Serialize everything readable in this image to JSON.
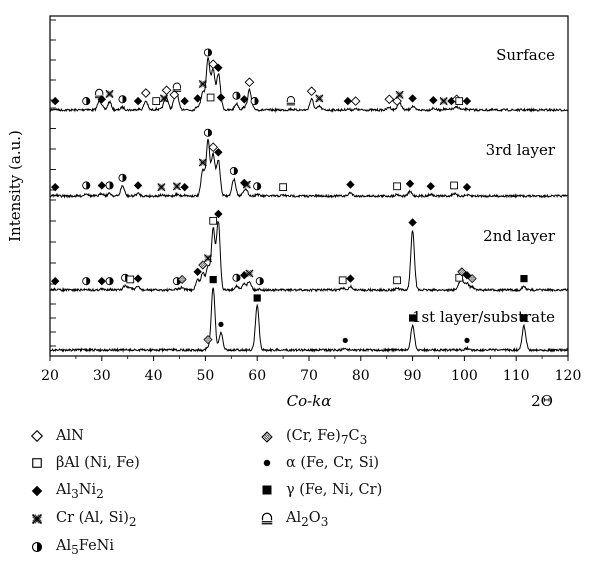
{
  "chart_data": {
    "type": "line",
    "title": "",
    "xlabel": "Co-kα",
    "xlabel_right": "2Θ",
    "ylabel": "Intensity (a.u.)",
    "xlim": [
      20,
      120
    ],
    "xticks": [
      20,
      30,
      40,
      50,
      60,
      70,
      80,
      90,
      100,
      110,
      120
    ],
    "grid": false,
    "legend_position": "bottom",
    "legend": [
      {
        "marker": "diamond-open",
        "label": "AlN"
      },
      {
        "marker": "square-open",
        "label": "βAl (Ni, Fe)"
      },
      {
        "marker": "diamond-filled",
        "label": "Al3Ni2"
      },
      {
        "marker": "cross",
        "label": "Cr (Al, Si)2"
      },
      {
        "marker": "circle-half",
        "label": "Al5FeNi"
      },
      {
        "marker": "diamond-hatched",
        "label": "(Cr, Fe)7C3"
      },
      {
        "marker": "dot",
        "label": "α (Fe, Cr, Si)"
      },
      {
        "marker": "square-filled",
        "label": "γ (Fe, Ni, Cr)"
      },
      {
        "marker": "arch",
        "label": "Al2O3"
      }
    ],
    "series": [
      {
        "name": "Surface",
        "peaks": [
          {
            "x": 21,
            "h": 0.01,
            "m": "diamond-filled"
          },
          {
            "x": 27,
            "h": 0.01,
            "m": "circle-half"
          },
          {
            "x": 29.5,
            "h": 0.09,
            "m": "arch"
          },
          {
            "x": 30,
            "h": 0.03,
            "m": "diamond-filled"
          },
          {
            "x": 31.5,
            "h": 0.09,
            "m": "cross"
          },
          {
            "x": 34,
            "h": 0.03,
            "m": "circle-half"
          },
          {
            "x": 37,
            "h": 0.01,
            "m": "diamond-filled"
          },
          {
            "x": 38.5,
            "h": 0.1,
            "m": "diamond-open"
          },
          {
            "x": 40.5,
            "h": 0.01,
            "m": "square-open"
          },
          {
            "x": 42,
            "h": 0.04,
            "m": "cross"
          },
          {
            "x": 42.5,
            "h": 0.13,
            "m": "diamond-open"
          },
          {
            "x": 44,
            "h": 0.08,
            "m": "diamond-open"
          },
          {
            "x": 44.5,
            "h": 0.16,
            "m": "arch"
          },
          {
            "x": 46,
            "h": 0.01,
            "m": "diamond-filled"
          },
          {
            "x": 48.5,
            "h": 0.04,
            "m": "diamond-filled"
          },
          {
            "x": 49.5,
            "h": 0.2,
            "m": "cross"
          },
          {
            "x": 50.5,
            "h": 0.55,
            "m": "circle-half"
          },
          {
            "x": 51.5,
            "h": 0.42,
            "m": "diamond-open"
          },
          {
            "x": 52.5,
            "h": 0.38,
            "m": "diamond-filled"
          },
          {
            "x": 51,
            "h": 0.05,
            "m": "square-open"
          },
          {
            "x": 53,
            "h": 0.05,
            "m": "diamond-filled"
          },
          {
            "x": 56,
            "h": 0.07,
            "m": "circle-half"
          },
          {
            "x": 57.5,
            "h": 0.03,
            "m": "diamond-filled"
          },
          {
            "x": 58.5,
            "h": 0.22,
            "m": "diamond-open"
          },
          {
            "x": 59.5,
            "h": 0.01,
            "m": "circle-half"
          },
          {
            "x": 66.5,
            "h": 0.01,
            "m": "arch"
          },
          {
            "x": 70.5,
            "h": 0.12,
            "m": "diamond-open"
          },
          {
            "x": 72,
            "h": 0.04,
            "m": "cross"
          },
          {
            "x": 77.5,
            "h": 0.01,
            "m": "diamond-filled"
          },
          {
            "x": 79,
            "h": 0.01,
            "m": "diamond-open"
          },
          {
            "x": 85.5,
            "h": 0.03,
            "m": "diamond-open"
          },
          {
            "x": 87,
            "h": 0.01,
            "m": "diamond-open"
          },
          {
            "x": 87.5,
            "h": 0.08,
            "m": "cross"
          },
          {
            "x": 90,
            "h": 0.04,
            "m": "diamond-filled"
          },
          {
            "x": 94,
            "h": 0.02,
            "m": "diamond-filled"
          },
          {
            "x": 96,
            "h": 0.01,
            "m": "cross"
          },
          {
            "x": 97.5,
            "h": 0.01,
            "m": "diamond-filled"
          },
          {
            "x": 98.5,
            "h": 0.03,
            "m": "diamond-open"
          },
          {
            "x": 99,
            "h": 0.01,
            "m": "square-open"
          },
          {
            "x": 100.5,
            "h": 0.01,
            "m": "diamond-filled"
          }
        ]
      },
      {
        "name": "3rd layer",
        "peaks": [
          {
            "x": 21,
            "h": 0.01,
            "m": "diamond-filled"
          },
          {
            "x": 27,
            "h": 0.03,
            "m": "circle-half"
          },
          {
            "x": 30,
            "h": 0.03,
            "m": "diamond-filled"
          },
          {
            "x": 31.5,
            "h": 0.03,
            "m": "circle-half"
          },
          {
            "x": 34,
            "h": 0.12,
            "m": "circle-half"
          },
          {
            "x": 37,
            "h": 0.03,
            "m": "diamond-filled"
          },
          {
            "x": 41.5,
            "h": 0.01,
            "m": "cross"
          },
          {
            "x": 44.5,
            "h": 0.02,
            "m": "cross"
          },
          {
            "x": 46,
            "h": 0.01,
            "m": "diamond-filled"
          },
          {
            "x": 49.5,
            "h": 0.3,
            "m": "cross"
          },
          {
            "x": 50.5,
            "h": 0.65,
            "m": "circle-half"
          },
          {
            "x": 51.5,
            "h": 0.48,
            "m": "diamond-open"
          },
          {
            "x": 52.5,
            "h": 0.42,
            "m": "diamond-filled"
          },
          {
            "x": 55.5,
            "h": 0.2,
            "m": "circle-half"
          },
          {
            "x": 57.5,
            "h": 0.06,
            "m": "diamond-filled"
          },
          {
            "x": 58,
            "h": 0.04,
            "m": "cross"
          },
          {
            "x": 60,
            "h": 0.02,
            "m": "circle-half"
          },
          {
            "x": 65,
            "h": 0.01,
            "m": "square-open"
          },
          {
            "x": 78,
            "h": 0.04,
            "m": "diamond-filled"
          },
          {
            "x": 87,
            "h": 0.02,
            "m": "square-open"
          },
          {
            "x": 89.5,
            "h": 0.05,
            "m": "diamond-filled"
          },
          {
            "x": 93.5,
            "h": 0.02,
            "m": "diamond-filled"
          },
          {
            "x": 98,
            "h": 0.03,
            "m": "square-open"
          },
          {
            "x": 100.5,
            "h": 0.01,
            "m": "diamond-filled"
          }
        ]
      },
      {
        "name": "2nd layer",
        "peaks": [
          {
            "x": 21,
            "h": 0.01,
            "m": "diamond-filled"
          },
          {
            "x": 27,
            "h": 0.01,
            "m": "circle-half"
          },
          {
            "x": 30,
            "h": 0.01,
            "m": "diamond-filled"
          },
          {
            "x": 31.5,
            "h": 0.01,
            "m": "circle-half"
          },
          {
            "x": 34.5,
            "h": 0.05,
            "m": "circle-half"
          },
          {
            "x": 35.5,
            "h": 0.03,
            "m": "square-open"
          },
          {
            "x": 37,
            "h": 0.04,
            "m": "diamond-filled"
          },
          {
            "x": 44.5,
            "h": 0.01,
            "m": "circle-half"
          },
          {
            "x": 45.5,
            "h": 0.03,
            "m": "diamond-hatched"
          },
          {
            "x": 48.5,
            "h": 0.12,
            "m": "diamond-filled"
          },
          {
            "x": 49.5,
            "h": 0.2,
            "m": "diamond-hatched"
          },
          {
            "x": 50.5,
            "h": 0.28,
            "m": "cross"
          },
          {
            "x": 51.5,
            "h": 0.72,
            "m": "square-open"
          },
          {
            "x": 52.5,
            "h": 0.8,
            "m": "diamond-filled"
          },
          {
            "x": 56,
            "h": 0.05,
            "m": "circle-half"
          },
          {
            "x": 57.5,
            "h": 0.08,
            "m": "diamond-filled"
          },
          {
            "x": 58.5,
            "h": 0.1,
            "m": "cross"
          },
          {
            "x": 60.5,
            "h": 0.01,
            "m": "circle-half"
          },
          {
            "x": 76.5,
            "h": 0.02,
            "m": "square-open"
          },
          {
            "x": 78,
            "h": 0.04,
            "m": "diamond-filled"
          },
          {
            "x": 87,
            "h": 0.02,
            "m": "square-open"
          },
          {
            "x": 90,
            "h": 0.7,
            "m": "diamond-filled"
          },
          {
            "x": 99,
            "h": 0.05,
            "m": "square-open"
          },
          {
            "x": 99.5,
            "h": 0.12,
            "m": "diamond-hatched"
          },
          {
            "x": 100.5,
            "h": 0.08,
            "m": "diamond-filled"
          },
          {
            "x": 101.5,
            "h": 0.04,
            "m": "diamond-hatched"
          },
          {
            "x": 111.5,
            "h": 0.04,
            "m": "square-filled"
          }
        ]
      },
      {
        "name": "1st layer/substrate",
        "peaks": [
          {
            "x": 50.5,
            "h": 0.03,
            "m": "diamond-hatched"
          },
          {
            "x": 51.5,
            "h": 0.78,
            "m": "square-filled"
          },
          {
            "x": 53,
            "h": 0.22,
            "m": "dot"
          },
          {
            "x": 60,
            "h": 0.55,
            "m": "square-filled"
          },
          {
            "x": 77,
            "h": 0.02,
            "m": "dot"
          },
          {
            "x": 90,
            "h": 0.3,
            "m": "square-filled"
          },
          {
            "x": 100.5,
            "h": 0.02,
            "m": "dot"
          },
          {
            "x": 111.5,
            "h": 0.3,
            "m": "square-filled"
          }
        ]
      }
    ]
  }
}
